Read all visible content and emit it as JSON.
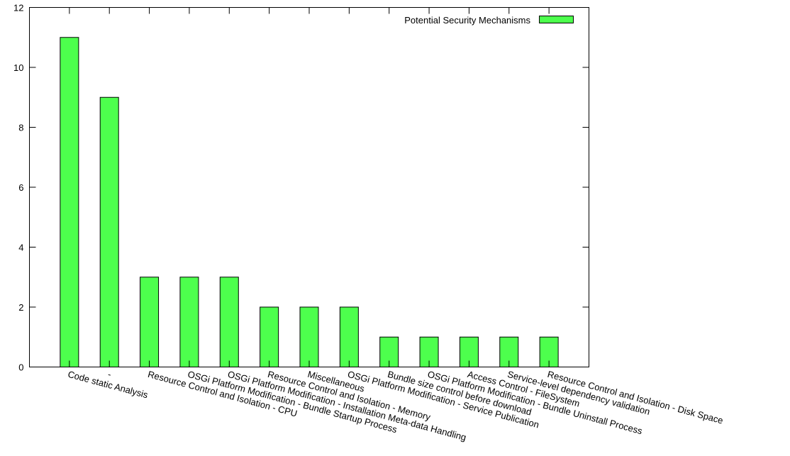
{
  "chart_data": {
    "type": "bar",
    "categories": [
      "Code static Analysis",
      "-",
      "Resource Control and Isolation - CPU",
      "OSGi Platform Modification - Bundle Startup Process",
      "OSGi Platform Modification - Installation Meta-data Handling",
      "Resource Control and Isolation - Memory",
      "Miscellaneous",
      "OSGi Platform Modification - Service Publication",
      "Bundle size control before download",
      "OSGi Platform Modification - Bundle Uninstall Process",
      "Access Control - FileSystem",
      "Service-level dependency validation",
      "Resource Control and Isolation - Disk Space"
    ],
    "series": [
      {
        "name": "Potential Security Mechanisms",
        "values": [
          11,
          9,
          3,
          3,
          3,
          2,
          2,
          2,
          1,
          1,
          1,
          1,
          1
        ]
      }
    ],
    "yticks": [
      0,
      2,
      4,
      6,
      8,
      10,
      12
    ],
    "ylim": [
      0,
      12
    ],
    "grid": false,
    "legend": "top-right",
    "bar_color": "#4dff4d"
  }
}
